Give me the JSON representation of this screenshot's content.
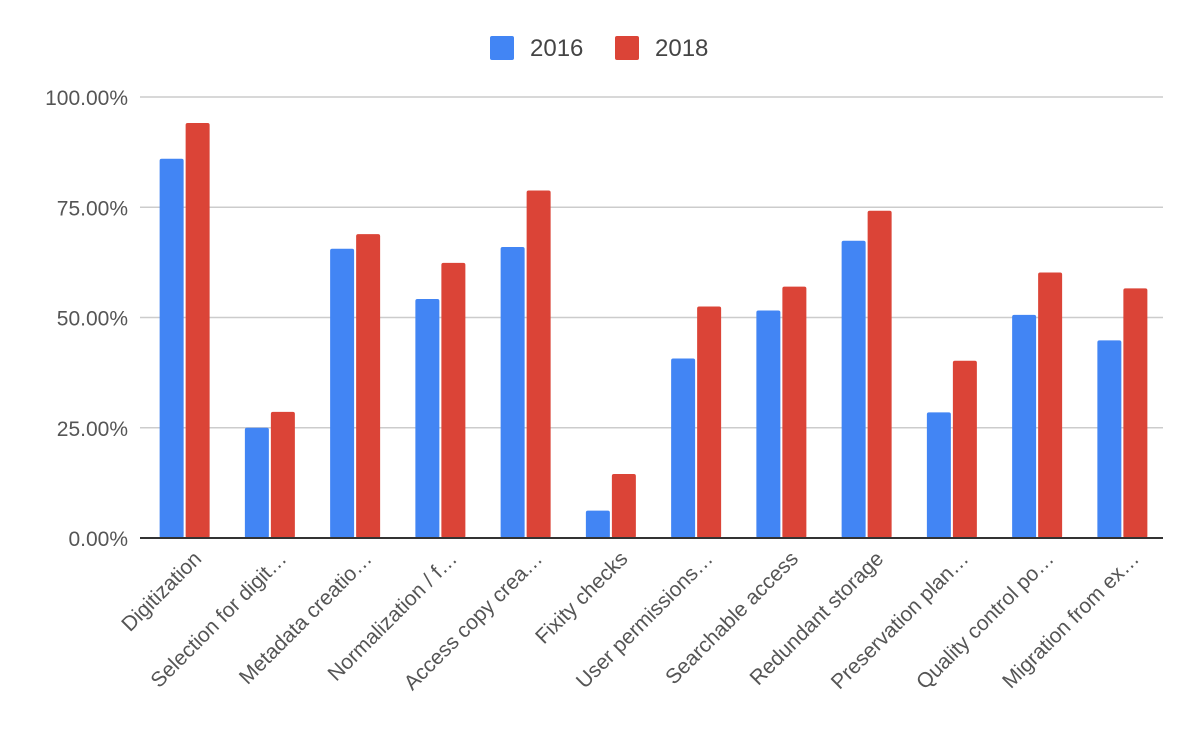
{
  "chart_data": {
    "type": "bar",
    "title": "",
    "xlabel": "",
    "ylabel": "",
    "ylim": [
      0,
      100
    ],
    "y_ticks": [
      "0.00%",
      "25.00%",
      "50.00%",
      "75.00%",
      "100.00%"
    ],
    "y_tick_values": [
      0,
      25,
      50,
      75,
      100
    ],
    "grid": true,
    "legend_position": "top-center",
    "categories": [
      "Digitization",
      "Selection for digit…",
      "Metadata creatio…",
      "Normalization / f…",
      "Access copy crea…",
      "Fixity checks",
      "User permissions…",
      "Searchable access",
      "Redundant storage",
      "Preservation plan…",
      "Quality control po…",
      "Migration from ex…"
    ],
    "series": [
      {
        "name": "2016",
        "color": "#4285f4",
        "values": [
          86,
          25,
          65.6,
          54.2,
          66,
          6.2,
          40.7,
          51.6,
          67.4,
          28.5,
          50.6,
          44.8
        ]
      },
      {
        "name": "2018",
        "color": "#db4437",
        "values": [
          94.1,
          28.6,
          68.9,
          62.4,
          78.8,
          14.5,
          52.5,
          57,
          74.2,
          40.2,
          60.2,
          56.6
        ]
      }
    ]
  }
}
